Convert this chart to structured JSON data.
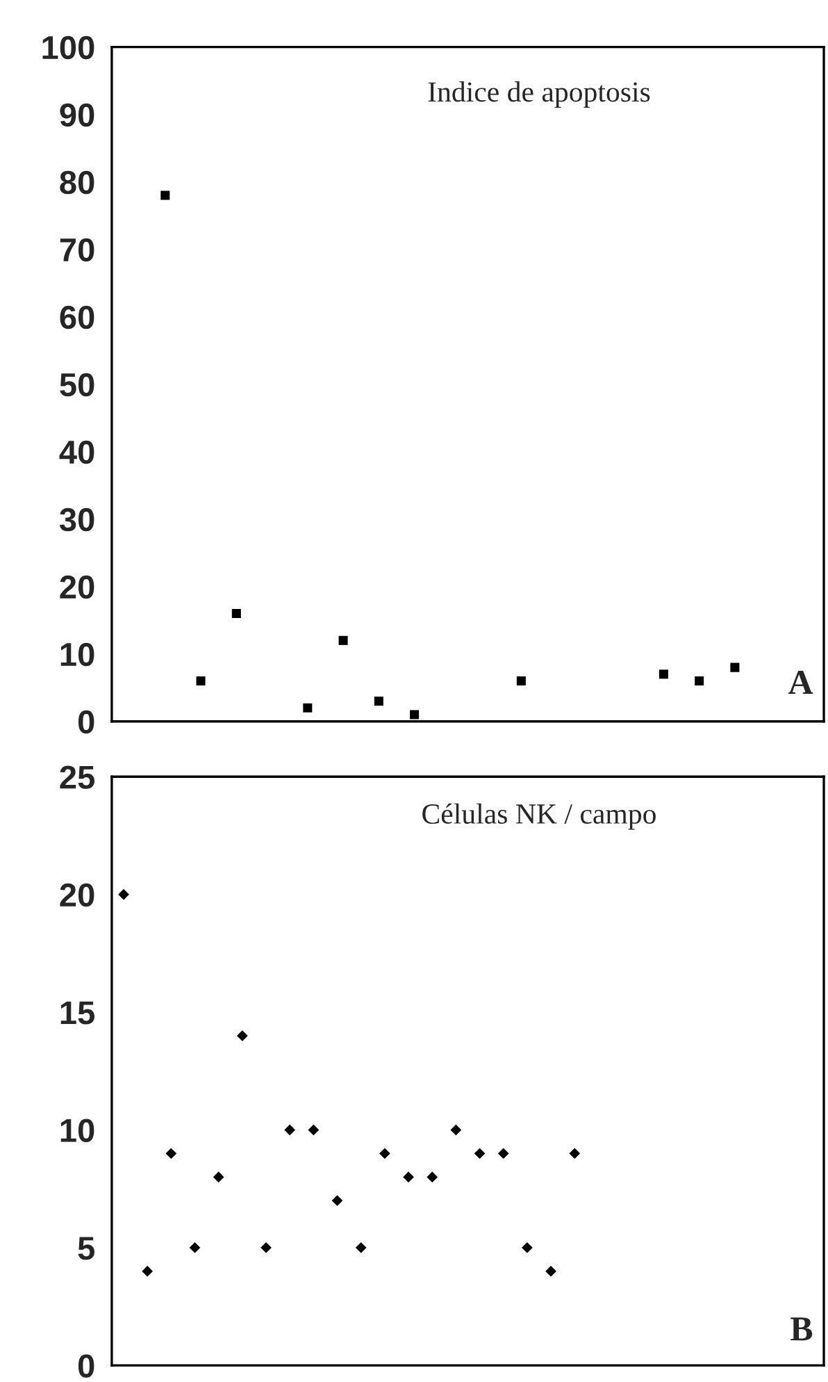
{
  "chart_data": [
    {
      "type": "scatter",
      "categories": [
        null,
        null,
        null,
        null,
        null,
        null,
        null,
        null,
        null,
        null,
        null,
        null,
        null,
        null,
        null,
        null,
        null,
        null,
        null,
        null
      ],
      "values": [
        null,
        78,
        6,
        16,
        null,
        2,
        12,
        3,
        1,
        null,
        null,
        6,
        null,
        null,
        null,
        7,
        6,
        8,
        null,
        null
      ],
      "color": "#000000",
      "marker": "square",
      "ylim": [
        0,
        100
      ],
      "yticks": [
        0,
        10,
        20,
        30,
        40,
        50,
        60,
        70,
        80,
        90,
        100
      ],
      "tick_labels": "y",
      "grid": false,
      "legend": false,
      "annotations": [
        "Indice de apoptosis",
        "A"
      ]
    },
    {
      "type": "scatter",
      "categories": [
        null,
        null,
        null,
        null,
        null,
        null,
        null,
        null,
        null,
        null,
        null,
        null,
        null,
        null,
        null,
        null,
        null,
        null,
        null,
        null,
        null,
        null,
        null,
        null,
        null,
        null,
        null,
        null,
        null,
        null
      ],
      "values": [
        20,
        4,
        9,
        5,
        8,
        14,
        5,
        10,
        10,
        7,
        5,
        9,
        8,
        8,
        10,
        9,
        9,
        5,
        4,
        9,
        null,
        null,
        null,
        null,
        null,
        null,
        null,
        null,
        null,
        null
      ],
      "color": "#000000",
      "marker": "diamond",
      "ylim": [
        0,
        25
      ],
      "yticks": [
        0,
        5,
        10,
        15,
        20,
        25
      ],
      "tick_labels": "y",
      "grid": false,
      "legend": false,
      "annotations": [
        "Células NK / campo",
        "B"
      ]
    }
  ]
}
